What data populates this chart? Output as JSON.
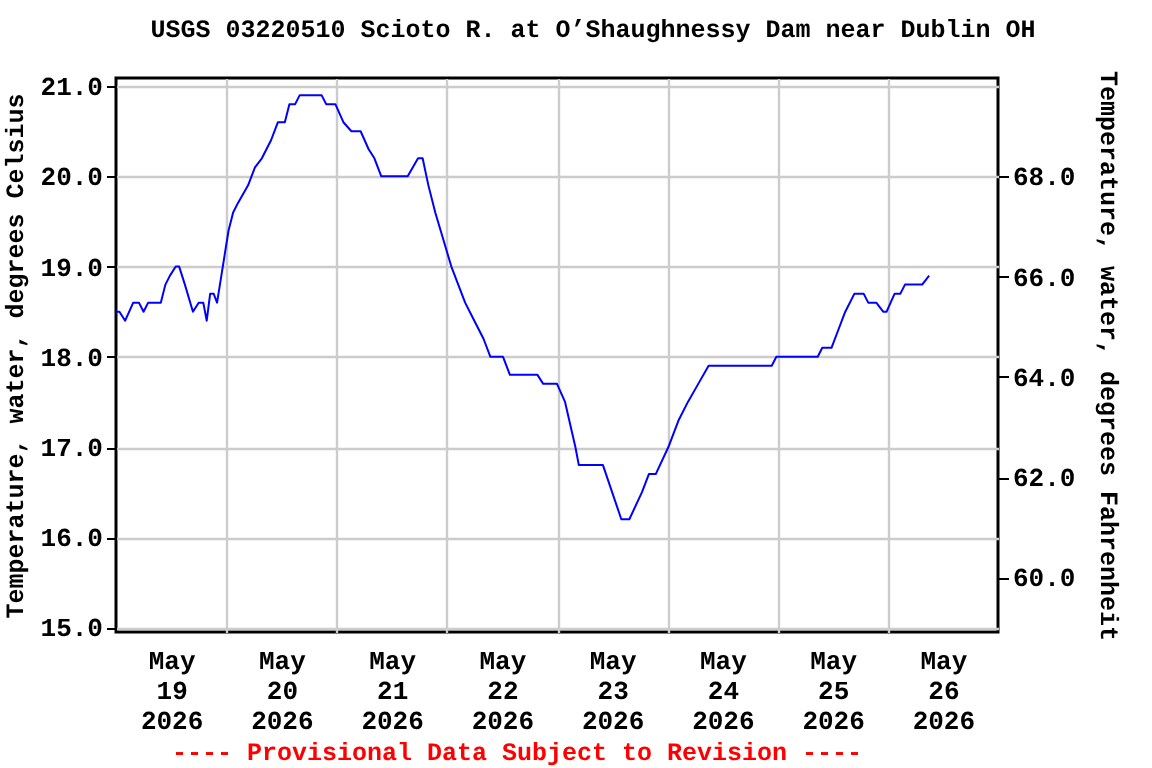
{
  "chart_data": {
    "type": "line",
    "title": "USGS 03220510 Scioto R. at O’Shaughnessy Dam near Dublin OH",
    "ylabel": "Temperature, water, degrees Celsius",
    "y2label": "Temperature, water, degrees Fahrenheit",
    "annotations": [
      "---- Provisional Data Subject to Revision ----"
    ],
    "x": [
      "2026-05-19T00:00",
      "2026-05-19T00:45",
      "2026-05-19T02:00",
      "2026-05-19T03:45",
      "2026-05-19T05:00",
      "2026-05-19T06:00",
      "2026-05-19T07:00",
      "2026-05-19T09:45",
      "2026-05-19T10:45",
      "2026-05-19T11:45",
      "2026-05-19T13:00",
      "2026-05-19T13:45",
      "2026-05-19T15:00",
      "2026-05-19T16:45",
      "2026-05-19T18:00",
      "2026-05-19T19:00",
      "2026-05-19T19:45",
      "2026-05-19T20:30",
      "2026-05-19T21:15",
      "2026-05-19T22:00",
      "2026-05-19T23:15",
      "2026-05-20T00:30",
      "2026-05-20T01:30",
      "2026-05-20T02:30",
      "2026-05-20T04:45",
      "2026-05-20T06:15",
      "2026-05-20T07:45",
      "2026-05-20T09:45",
      "2026-05-20T11:15",
      "2026-05-20T12:45",
      "2026-05-20T13:45",
      "2026-05-20T15:00",
      "2026-05-20T16:00",
      "2026-05-20T20:45",
      "2026-05-20T21:45",
      "2026-05-20T23:45",
      "2026-05-21T01:30",
      "2026-05-21T03:15",
      "2026-05-21T05:15",
      "2026-05-21T07:00",
      "2026-05-21T08:15",
      "2026-05-21T09:45",
      "2026-05-21T15:30",
      "2026-05-21T17:45",
      "2026-05-21T18:45",
      "2026-05-21T20:00",
      "2026-05-21T21:30",
      "2026-05-21T23:15",
      "2026-05-22T01:00",
      "2026-05-22T02:30",
      "2026-05-22T04:00",
      "2026-05-22T06:00",
      "2026-05-22T08:00",
      "2026-05-22T09:30",
      "2026-05-22T12:15",
      "2026-05-22T13:45",
      "2026-05-22T19:45",
      "2026-05-22T21:00",
      "2026-05-23T00:00",
      "2026-05-23T01:45",
      "2026-05-23T04:00",
      "2026-05-23T04:45",
      "2026-05-23T10:00",
      "2026-05-23T14:00",
      "2026-05-23T15:45",
      "2026-05-23T18:30",
      "2026-05-23T20:00",
      "2026-05-23T21:30",
      "2026-05-24T00:15",
      "2026-05-24T02:30",
      "2026-05-24T04:30",
      "2026-05-24T06:45",
      "2026-05-24T09:00",
      "2026-05-24T22:45",
      "2026-05-24T23:45",
      "2026-05-25T08:45",
      "2026-05-25T09:45",
      "2026-05-25T11:45",
      "2026-05-25T13:15",
      "2026-05-25T14:45",
      "2026-05-25T16:45",
      "2026-05-25T18:45",
      "2026-05-25T19:45",
      "2026-05-25T21:30",
      "2026-05-25T23:00",
      "2026-05-25T23:45",
      "2026-05-26T01:30",
      "2026-05-26T02:45",
      "2026-05-26T03:45",
      "2026-05-26T07:30",
      "2026-05-26T09:00"
    ],
    "series": [
      {
        "color": "#0000ff",
        "values": [
          18.5,
          18.5,
          18.4,
          18.6,
          18.6,
          18.5,
          18.6,
          18.6,
          18.8,
          18.9,
          19.0,
          19.0,
          18.8,
          18.5,
          18.6,
          18.6,
          18.4,
          18.7,
          18.7,
          18.6,
          19.0,
          19.4,
          19.6,
          19.7,
          19.9,
          20.1,
          20.2,
          20.4,
          20.6,
          20.6,
          20.8,
          20.8,
          20.9,
          20.9,
          20.8,
          20.8,
          20.6,
          20.5,
          20.5,
          20.3,
          20.2,
          20.0,
          20.0,
          20.2,
          20.2,
          19.9,
          19.6,
          19.3,
          19.0,
          18.8,
          18.6,
          18.4,
          18.2,
          18.0,
          18.0,
          17.8,
          17.8,
          17.7,
          17.7,
          17.5,
          17.0,
          16.8,
          16.8,
          16.2,
          16.2,
          16.5,
          16.7,
          16.7,
          17.0,
          17.3,
          17.5,
          17.7,
          17.9,
          17.9,
          18.0,
          18.0,
          18.1,
          18.1,
          18.3,
          18.5,
          18.7,
          18.7,
          18.6,
          18.6,
          18.5,
          18.5,
          18.7,
          18.7,
          18.8,
          18.8,
          18.9
        ]
      }
    ],
    "xlim": [
      "2026-05-19",
      "2026-05-27"
    ],
    "xticks": [
      {
        "value": "2026-05-19T12:00",
        "label": "May\n19\n2026"
      },
      {
        "value": "2026-05-20",
        "label": null
      },
      {
        "value": "2026-05-20T12:00",
        "label": "May\n20\n2026"
      },
      {
        "value": "2026-05-21",
        "label": null
      },
      {
        "value": "2026-05-21T12:00",
        "label": "May\n21\n2026"
      },
      {
        "value": "2026-05-22",
        "label": null
      },
      {
        "value": "2026-05-22T12:00",
        "label": "May\n22\n2026"
      },
      {
        "value": "2026-05-23",
        "label": null
      },
      {
        "value": "2026-05-23T12:00",
        "label": "May\n23\n2026"
      },
      {
        "value": "2026-05-24",
        "label": null
      },
      {
        "value": "2026-05-24T12:00",
        "label": "May\n24\n2026"
      },
      {
        "value": "2026-05-25",
        "label": null
      },
      {
        "value": "2026-05-25T12:00",
        "label": "May\n25\n2026"
      },
      {
        "value": "2026-05-26",
        "label": null
      },
      {
        "value": "2026-05-26T12:00",
        "label": "May\n26\n2026"
      }
    ],
    "ylim": [
      14.95,
      21.09
    ],
    "yticks": [
      {
        "value": 15,
        "label": "15.0"
      },
      {
        "value": 16,
        "label": "16.0"
      },
      {
        "value": 17,
        "label": "17.0"
      },
      {
        "value": 18,
        "label": "18.0"
      },
      {
        "value": 19,
        "label": "19.0"
      },
      {
        "value": 20,
        "label": "20.0"
      },
      {
        "value": 21,
        "label": "21.0"
      }
    ],
    "y2lim": [
      58.91,
      69.96
    ],
    "y2ticks": [
      {
        "value": 60,
        "label": "60.0"
      },
      {
        "value": 62,
        "label": "62.0"
      },
      {
        "value": 64,
        "label": "64.0"
      },
      {
        "value": 66,
        "label": "66.0"
      },
      {
        "value": 68,
        "label": "68.0"
      }
    ],
    "grid": true
  }
}
